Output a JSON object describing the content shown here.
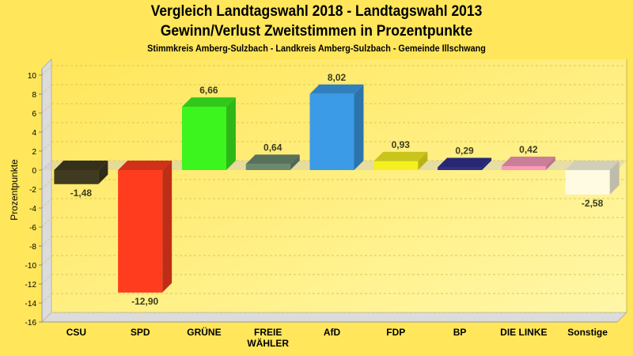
{
  "chart_data": {
    "type": "bar",
    "title": "Vergleich Landtagswahl 2018 - Landtagswahl 2013",
    "subtitle": "Gewinn/Verlust Zweitstimmen in Prozentpunkte",
    "subtitle2": "Stimmkreis Amberg-Sulzbach - Landkreis Amberg-Sulzbach - Gemeinde Illschwang",
    "xlabel": "",
    "ylabel": "Prozentpunkte",
    "ylim": [
      -16,
      10
    ],
    "yticks": [
      10,
      8,
      6,
      4,
      2,
      0,
      -2,
      -4,
      -6,
      -8,
      -10,
      -12,
      -14,
      -16
    ],
    "grid": true,
    "categories": [
      "CSU",
      "SPD",
      "GRÜNE",
      "FREIE WÄHLER",
      "AfD",
      "FDP",
      "BP",
      "DIE LINKE",
      "Sonstige"
    ],
    "category_labels": [
      [
        "CSU"
      ],
      [
        "SPD"
      ],
      [
        "GRÜNE"
      ],
      [
        "FREIE",
        "WÄHLER"
      ],
      [
        "AfD"
      ],
      [
        "FDP"
      ],
      [
        "BP"
      ],
      [
        "DIE LINKE"
      ],
      [
        "Sonstige"
      ]
    ],
    "values": [
      -1.48,
      -12.9,
      6.66,
      0.64,
      8.02,
      0.93,
      0.29,
      0.42,
      -2.58
    ],
    "value_labels": [
      "-1,48",
      "-12,90",
      "6,66",
      "0,64",
      "8,02",
      "0,93",
      "0,29",
      "0,42",
      "-2,58"
    ],
    "colors": [
      "#403b20",
      "#ff3c1e",
      "#3cf51e",
      "#6a8a70",
      "#3c9be6",
      "#f5f020",
      "#30308c",
      "#f89ab8",
      "#fffbe2"
    ]
  }
}
